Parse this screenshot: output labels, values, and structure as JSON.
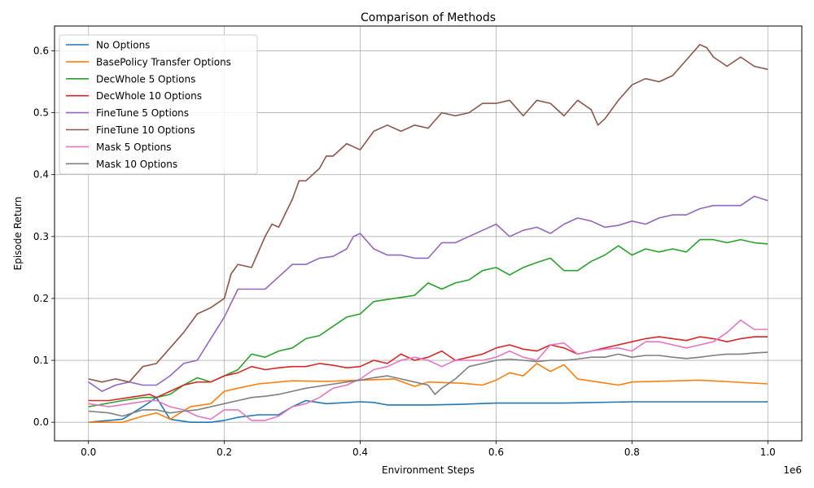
{
  "chart_data": {
    "type": "line",
    "title": "Comparison of Methods",
    "xlabel": "Environment Steps",
    "ylabel": "Episode Return",
    "x_offset_label": "1e6",
    "xlim": [
      -0.05,
      1.05
    ],
    "ylim": [
      -0.03,
      0.64
    ],
    "x_ticks": [
      0.0,
      0.2,
      0.4,
      0.6,
      0.8,
      1.0
    ],
    "x_tick_labels": [
      "0.0",
      "0.2",
      "0.4",
      "0.6",
      "0.8",
      "1.0"
    ],
    "y_ticks": [
      0.0,
      0.1,
      0.2,
      0.3,
      0.4,
      0.5,
      0.6
    ],
    "y_tick_labels": [
      "0.0",
      "0.1",
      "0.2",
      "0.3",
      "0.4",
      "0.5",
      "0.6"
    ],
    "grid": true,
    "legend_position": "top-left",
    "series": [
      {
        "name": "No Options",
        "color": "#1f77b4",
        "x": [
          0.0,
          0.05,
          0.08,
          0.1,
          0.12,
          0.15,
          0.18,
          0.2,
          0.22,
          0.25,
          0.28,
          0.3,
          0.32,
          0.35,
          0.4,
          0.42,
          0.44,
          0.5,
          0.55,
          0.6,
          0.65,
          0.7,
          0.8,
          0.9,
          1.0
        ],
        "y": [
          0.0,
          0.005,
          0.025,
          0.04,
          0.005,
          0.0,
          0.0,
          0.003,
          0.008,
          0.012,
          0.012,
          0.025,
          0.035,
          0.03,
          0.033,
          0.032,
          0.028,
          0.028,
          0.029,
          0.031,
          0.031,
          0.031,
          0.033,
          0.033,
          0.033
        ]
      },
      {
        "name": "BasePolicy Transfer Options",
        "color": "#ff7f0e",
        "x": [
          0.0,
          0.05,
          0.08,
          0.1,
          0.12,
          0.15,
          0.18,
          0.2,
          0.22,
          0.25,
          0.28,
          0.3,
          0.35,
          0.4,
          0.45,
          0.48,
          0.5,
          0.55,
          0.58,
          0.6,
          0.62,
          0.64,
          0.66,
          0.68,
          0.7,
          0.72,
          0.75,
          0.78,
          0.8,
          0.9,
          1.0
        ],
        "y": [
          0.0,
          0.0,
          0.01,
          0.015,
          0.005,
          0.025,
          0.03,
          0.05,
          0.055,
          0.062,
          0.065,
          0.067,
          0.066,
          0.068,
          0.07,
          0.058,
          0.065,
          0.063,
          0.06,
          0.068,
          0.08,
          0.075,
          0.095,
          0.082,
          0.093,
          0.07,
          0.065,
          0.06,
          0.065,
          0.068,
          0.062
        ]
      },
      {
        "name": "DecWhole 5 Options",
        "color": "#2ca02c",
        "x": [
          0.0,
          0.05,
          0.08,
          0.1,
          0.12,
          0.14,
          0.16,
          0.18,
          0.2,
          0.22,
          0.24,
          0.26,
          0.28,
          0.3,
          0.32,
          0.34,
          0.36,
          0.38,
          0.4,
          0.42,
          0.45,
          0.48,
          0.5,
          0.52,
          0.54,
          0.56,
          0.58,
          0.6,
          0.62,
          0.64,
          0.66,
          0.68,
          0.7,
          0.72,
          0.74,
          0.76,
          0.78,
          0.8,
          0.82,
          0.84,
          0.86,
          0.88,
          0.9,
          0.92,
          0.94,
          0.96,
          0.98,
          1.0
        ],
        "y": [
          0.025,
          0.035,
          0.04,
          0.04,
          0.045,
          0.06,
          0.072,
          0.065,
          0.075,
          0.085,
          0.11,
          0.105,
          0.115,
          0.12,
          0.135,
          0.14,
          0.155,
          0.17,
          0.175,
          0.195,
          0.2,
          0.205,
          0.225,
          0.215,
          0.225,
          0.23,
          0.245,
          0.25,
          0.238,
          0.25,
          0.258,
          0.265,
          0.245,
          0.245,
          0.26,
          0.27,
          0.285,
          0.27,
          0.28,
          0.275,
          0.28,
          0.275,
          0.295,
          0.295,
          0.29,
          0.295,
          0.29,
          0.288
        ]
      },
      {
        "name": "DecWhole 10 Options",
        "color": "#d62728",
        "x": [
          0.0,
          0.03,
          0.06,
          0.09,
          0.1,
          0.12,
          0.14,
          0.16,
          0.18,
          0.2,
          0.22,
          0.24,
          0.26,
          0.28,
          0.3,
          0.32,
          0.34,
          0.36,
          0.38,
          0.4,
          0.42,
          0.44,
          0.46,
          0.48,
          0.5,
          0.52,
          0.54,
          0.56,
          0.58,
          0.6,
          0.62,
          0.64,
          0.66,
          0.68,
          0.7,
          0.72,
          0.74,
          0.76,
          0.78,
          0.8,
          0.82,
          0.84,
          0.86,
          0.88,
          0.9,
          0.92,
          0.94,
          0.96,
          0.98,
          1.0
        ],
        "y": [
          0.035,
          0.035,
          0.04,
          0.045,
          0.04,
          0.05,
          0.06,
          0.065,
          0.065,
          0.075,
          0.08,
          0.09,
          0.085,
          0.088,
          0.09,
          0.09,
          0.095,
          0.092,
          0.088,
          0.09,
          0.1,
          0.095,
          0.11,
          0.1,
          0.105,
          0.115,
          0.1,
          0.105,
          0.11,
          0.12,
          0.125,
          0.118,
          0.115,
          0.125,
          0.12,
          0.11,
          0.115,
          0.12,
          0.125,
          0.13,
          0.135,
          0.138,
          0.135,
          0.132,
          0.138,
          0.135,
          0.13,
          0.135,
          0.138,
          0.138
        ]
      },
      {
        "name": "FineTune 5 Options",
        "color": "#9467bd",
        "x": [
          0.0,
          0.02,
          0.04,
          0.06,
          0.08,
          0.1,
          0.12,
          0.14,
          0.16,
          0.18,
          0.2,
          0.22,
          0.24,
          0.26,
          0.28,
          0.3,
          0.32,
          0.34,
          0.36,
          0.38,
          0.39,
          0.4,
          0.42,
          0.44,
          0.46,
          0.48,
          0.5,
          0.52,
          0.54,
          0.56,
          0.58,
          0.6,
          0.62,
          0.64,
          0.66,
          0.68,
          0.7,
          0.72,
          0.74,
          0.76,
          0.78,
          0.8,
          0.82,
          0.84,
          0.86,
          0.88,
          0.9,
          0.92,
          0.94,
          0.96,
          0.98,
          1.0
        ],
        "y": [
          0.065,
          0.05,
          0.06,
          0.065,
          0.06,
          0.06,
          0.075,
          0.095,
          0.1,
          0.135,
          0.17,
          0.215,
          0.215,
          0.215,
          0.235,
          0.255,
          0.255,
          0.265,
          0.268,
          0.28,
          0.3,
          0.305,
          0.28,
          0.27,
          0.27,
          0.265,
          0.265,
          0.29,
          0.29,
          0.3,
          0.31,
          0.32,
          0.3,
          0.31,
          0.315,
          0.305,
          0.32,
          0.33,
          0.325,
          0.315,
          0.318,
          0.325,
          0.32,
          0.33,
          0.335,
          0.335,
          0.345,
          0.35,
          0.35,
          0.35,
          0.365,
          0.358
        ]
      },
      {
        "name": "FineTune 10 Options",
        "color": "#8c564b",
        "x": [
          0.0,
          0.02,
          0.04,
          0.06,
          0.08,
          0.1,
          0.12,
          0.14,
          0.16,
          0.18,
          0.2,
          0.21,
          0.22,
          0.24,
          0.26,
          0.27,
          0.28,
          0.3,
          0.31,
          0.32,
          0.34,
          0.35,
          0.36,
          0.38,
          0.4,
          0.42,
          0.44,
          0.46,
          0.48,
          0.5,
          0.52,
          0.54,
          0.56,
          0.58,
          0.6,
          0.62,
          0.64,
          0.66,
          0.68,
          0.7,
          0.72,
          0.74,
          0.75,
          0.76,
          0.78,
          0.8,
          0.82,
          0.84,
          0.86,
          0.88,
          0.9,
          0.91,
          0.92,
          0.94,
          0.96,
          0.98,
          1.0
        ],
        "y": [
          0.07,
          0.065,
          0.07,
          0.065,
          0.09,
          0.095,
          0.12,
          0.145,
          0.175,
          0.185,
          0.2,
          0.24,
          0.255,
          0.25,
          0.3,
          0.32,
          0.315,
          0.36,
          0.39,
          0.39,
          0.41,
          0.43,
          0.43,
          0.45,
          0.44,
          0.47,
          0.48,
          0.47,
          0.48,
          0.475,
          0.5,
          0.495,
          0.5,
          0.515,
          0.515,
          0.52,
          0.495,
          0.52,
          0.515,
          0.495,
          0.52,
          0.505,
          0.48,
          0.49,
          0.52,
          0.545,
          0.555,
          0.55,
          0.56,
          0.585,
          0.61,
          0.605,
          0.59,
          0.575,
          0.59,
          0.575,
          0.57
        ]
      },
      {
        "name": "Mask 5 Options",
        "color": "#e377c2",
        "x": [
          0.0,
          0.03,
          0.06,
          0.09,
          0.1,
          0.12,
          0.14,
          0.16,
          0.18,
          0.2,
          0.22,
          0.24,
          0.26,
          0.28,
          0.3,
          0.32,
          0.34,
          0.36,
          0.38,
          0.4,
          0.42,
          0.44,
          0.46,
          0.48,
          0.5,
          0.52,
          0.54,
          0.56,
          0.58,
          0.6,
          0.62,
          0.64,
          0.66,
          0.68,
          0.7,
          0.72,
          0.74,
          0.76,
          0.78,
          0.8,
          0.82,
          0.84,
          0.86,
          0.88,
          0.9,
          0.92,
          0.94,
          0.96,
          0.98,
          1.0
        ],
        "y": [
          0.03,
          0.025,
          0.03,
          0.035,
          0.035,
          0.025,
          0.02,
          0.01,
          0.005,
          0.02,
          0.02,
          0.003,
          0.003,
          0.01,
          0.025,
          0.03,
          0.04,
          0.055,
          0.06,
          0.07,
          0.085,
          0.09,
          0.1,
          0.105,
          0.1,
          0.09,
          0.1,
          0.1,
          0.1,
          0.105,
          0.115,
          0.105,
          0.1,
          0.125,
          0.128,
          0.11,
          0.115,
          0.118,
          0.12,
          0.115,
          0.13,
          0.13,
          0.125,
          0.12,
          0.125,
          0.13,
          0.145,
          0.165,
          0.15,
          0.15
        ]
      },
      {
        "name": "Mask 10 Options",
        "color": "#7f7f7f",
        "x": [
          0.0,
          0.03,
          0.05,
          0.08,
          0.1,
          0.12,
          0.14,
          0.16,
          0.18,
          0.2,
          0.22,
          0.24,
          0.26,
          0.28,
          0.3,
          0.32,
          0.35,
          0.38,
          0.4,
          0.42,
          0.44,
          0.46,
          0.48,
          0.5,
          0.51,
          0.52,
          0.54,
          0.56,
          0.58,
          0.6,
          0.62,
          0.64,
          0.66,
          0.68,
          0.7,
          0.72,
          0.74,
          0.76,
          0.78,
          0.8,
          0.82,
          0.84,
          0.86,
          0.88,
          0.9,
          0.92,
          0.94,
          0.96,
          0.98,
          1.0
        ],
        "y": [
          0.018,
          0.015,
          0.01,
          0.02,
          0.02,
          0.015,
          0.018,
          0.02,
          0.025,
          0.03,
          0.035,
          0.04,
          0.042,
          0.045,
          0.05,
          0.055,
          0.06,
          0.065,
          0.068,
          0.072,
          0.075,
          0.07,
          0.065,
          0.06,
          0.045,
          0.055,
          0.07,
          0.09,
          0.095,
          0.1,
          0.102,
          0.1,
          0.098,
          0.1,
          0.1,
          0.102,
          0.105,
          0.105,
          0.11,
          0.105,
          0.108,
          0.108,
          0.105,
          0.103,
          0.105,
          0.108,
          0.11,
          0.11,
          0.112,
          0.113
        ]
      }
    ]
  }
}
